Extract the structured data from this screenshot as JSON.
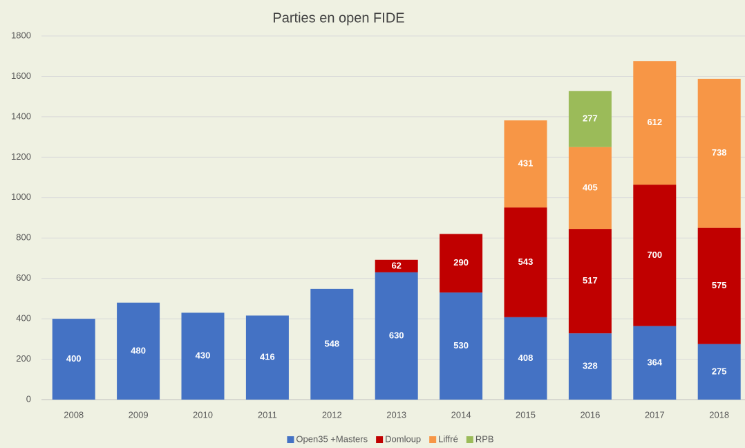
{
  "chart_data": {
    "type": "bar",
    "stacked": true,
    "title": "Parties en open FIDE",
    "categories": [
      "2008",
      "2009",
      "2010",
      "2011",
      "2012",
      "2013",
      "2014",
      "2015",
      "2016",
      "2017",
      "2018"
    ],
    "series": [
      {
        "name": "Open35 +Masters",
        "color": "#4472c4",
        "values": [
          400,
          480,
          430,
          416,
          548,
          630,
          530,
          408,
          328,
          364,
          275
        ]
      },
      {
        "name": "Domloup",
        "color": "#c00000",
        "values": [
          null,
          null,
          null,
          null,
          null,
          62,
          290,
          543,
          517,
          700,
          575
        ]
      },
      {
        "name": "Liffré",
        "color": "#f79646",
        "values": [
          null,
          null,
          null,
          null,
          null,
          null,
          null,
          431,
          405,
          612,
          738
        ]
      },
      {
        "name": "RPB",
        "color": "#9bbb59",
        "values": [
          null,
          null,
          null,
          null,
          null,
          null,
          null,
          null,
          277,
          null,
          null
        ]
      }
    ],
    "ylim": [
      0,
      1800
    ],
    "yticks": [
      0,
      200,
      400,
      600,
      800,
      1000,
      1200,
      1400,
      1600,
      1800
    ],
    "grid": true,
    "legend": "bottom"
  }
}
